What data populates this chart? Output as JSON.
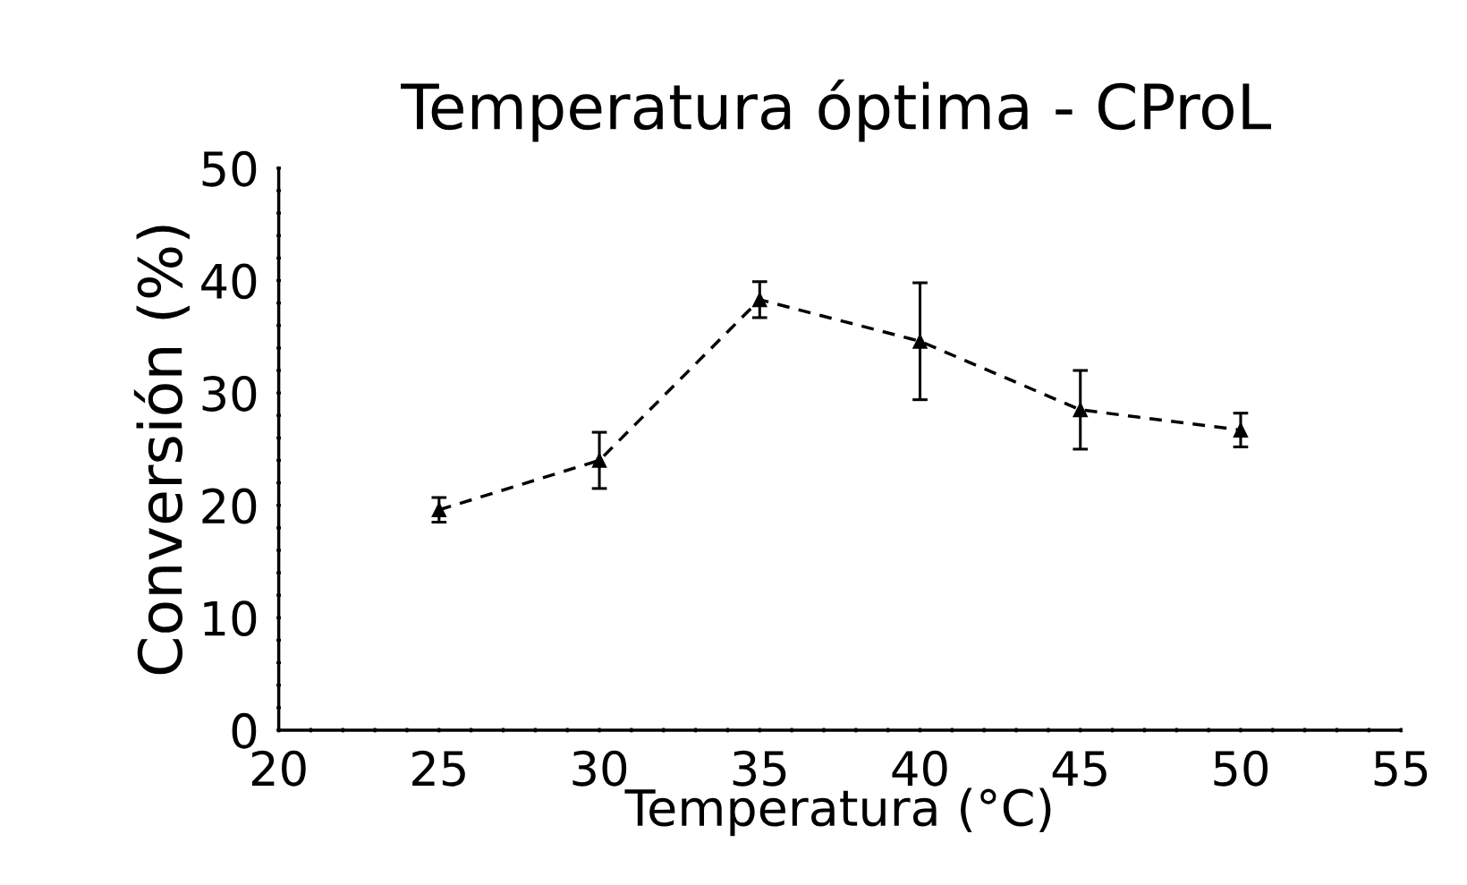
{
  "chart_data": {
    "type": "line",
    "title": "Temperatura óptima - CProL",
    "xlabel": "Temperatura (°C)",
    "ylabel": "Conversión (%)",
    "x": [
      25,
      30,
      35,
      40,
      45,
      50
    ],
    "series": [
      {
        "color": "#000000",
        "values": [
          19.6,
          24.0,
          38.3,
          34.6,
          28.5,
          26.7
        ],
        "errors": [
          1.1,
          2.5,
          1.6,
          5.2,
          3.5,
          1.5
        ]
      }
    ],
    "marker": "triangle",
    "line_style": "dashed",
    "grid": false,
    "legend": false,
    "xlim": [
      20,
      55
    ],
    "ylim": [
      0,
      50
    ],
    "xticks": [
      20,
      {
        "value": 21,
        "label": null
      },
      {
        "value": 22,
        "label": null
      },
      {
        "value": 23,
        "label": null
      },
      {
        "value": 24,
        "label": null
      },
      25,
      {
        "value": 26,
        "label": null
      },
      {
        "value": 27,
        "label": null
      },
      {
        "value": 28,
        "label": null
      },
      {
        "value": 29,
        "label": null
      },
      30,
      {
        "value": 31,
        "label": null
      },
      {
        "value": 32,
        "label": null
      },
      {
        "value": 33,
        "label": null
      },
      {
        "value": 34,
        "label": null
      },
      35,
      {
        "value": 36,
        "label": null
      },
      {
        "value": 37,
        "label": null
      },
      {
        "value": 38,
        "label": null
      },
      {
        "value": 39,
        "label": null
      },
      40,
      {
        "value": 41,
        "label": null
      },
      {
        "value": 42,
        "label": null
      },
      {
        "value": 43,
        "label": null
      },
      {
        "value": 44,
        "label": null
      },
      45,
      {
        "value": 46,
        "label": null
      },
      {
        "value": 47,
        "label": null
      },
      {
        "value": 48,
        "label": null
      },
      {
        "value": 49,
        "label": null
      },
      50,
      {
        "value": 51,
        "label": null
      },
      {
        "value": 52,
        "label": null
      },
      {
        "value": 53,
        "label": null
      },
      {
        "value": 54,
        "label": null
      },
      55
    ],
    "yticks": [
      0,
      {
        "value": 2,
        "label": null
      },
      {
        "value": 4,
        "label": null
      },
      {
        "value": 6,
        "label": null
      },
      {
        "value": 8,
        "label": null
      },
      10,
      {
        "value": 12,
        "label": null
      },
      {
        "value": 14,
        "label": null
      },
      {
        "value": 16,
        "label": null
      },
      {
        "value": 18,
        "label": null
      },
      20,
      {
        "value": 22,
        "label": null
      },
      {
        "value": 24,
        "label": null
      },
      {
        "value": 26,
        "label": null
      },
      {
        "value": 28,
        "label": null
      },
      30,
      {
        "value": 32,
        "label": null
      },
      {
        "value": 34,
        "label": null
      },
      {
        "value": 36,
        "label": null
      },
      {
        "value": 38,
        "label": null
      },
      40,
      {
        "value": 42,
        "label": null
      },
      {
        "value": 44,
        "label": null
      },
      {
        "value": 46,
        "label": null
      },
      {
        "value": 48,
        "label": null
      },
      50
    ]
  }
}
